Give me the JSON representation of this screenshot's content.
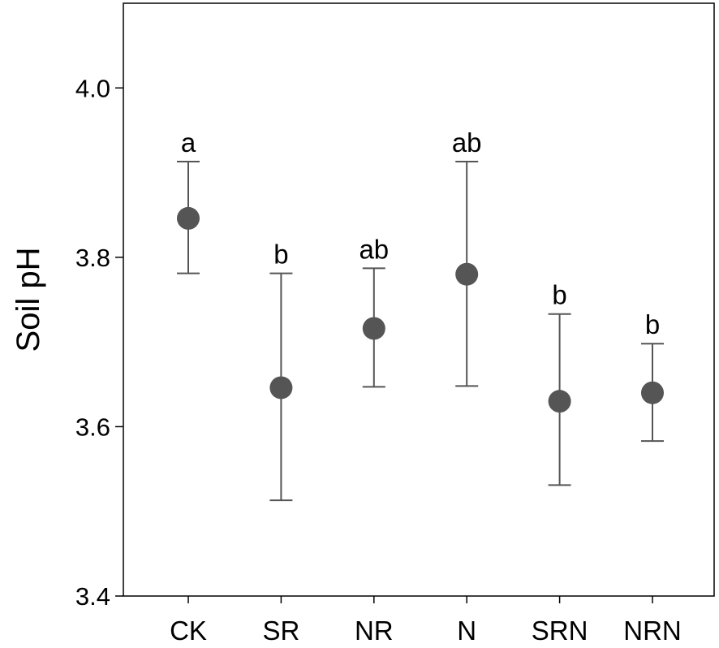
{
  "chart_data": {
    "type": "scatter",
    "ylabel": "Soil pH",
    "xlabel": "",
    "ylim": [
      3.4,
      4.1
    ],
    "yticks": [
      3.4,
      3.6,
      3.8,
      4.0
    ],
    "ytick_labels": [
      "3.4",
      "3.6",
      "3.8",
      "4.0"
    ],
    "grid": false,
    "legend": "none",
    "categories": [
      "CK",
      "SR",
      "NR",
      "N",
      "SRN",
      "NRN"
    ],
    "series": [
      {
        "values": [
          3.846,
          3.646,
          3.716,
          3.78,
          3.63,
          3.64
        ],
        "error_upper": [
          3.913,
          3.781,
          3.787,
          3.913,
          3.733,
          3.698
        ],
        "error_lower": [
          3.781,
          3.513,
          3.647,
          3.648,
          3.531,
          3.583
        ],
        "significance": [
          "a",
          "b",
          "ab",
          "ab",
          "b",
          "b"
        ]
      }
    ],
    "colors": {
      "marker": "#555555",
      "errorbar": "#555555",
      "axis": "#000000"
    }
  }
}
